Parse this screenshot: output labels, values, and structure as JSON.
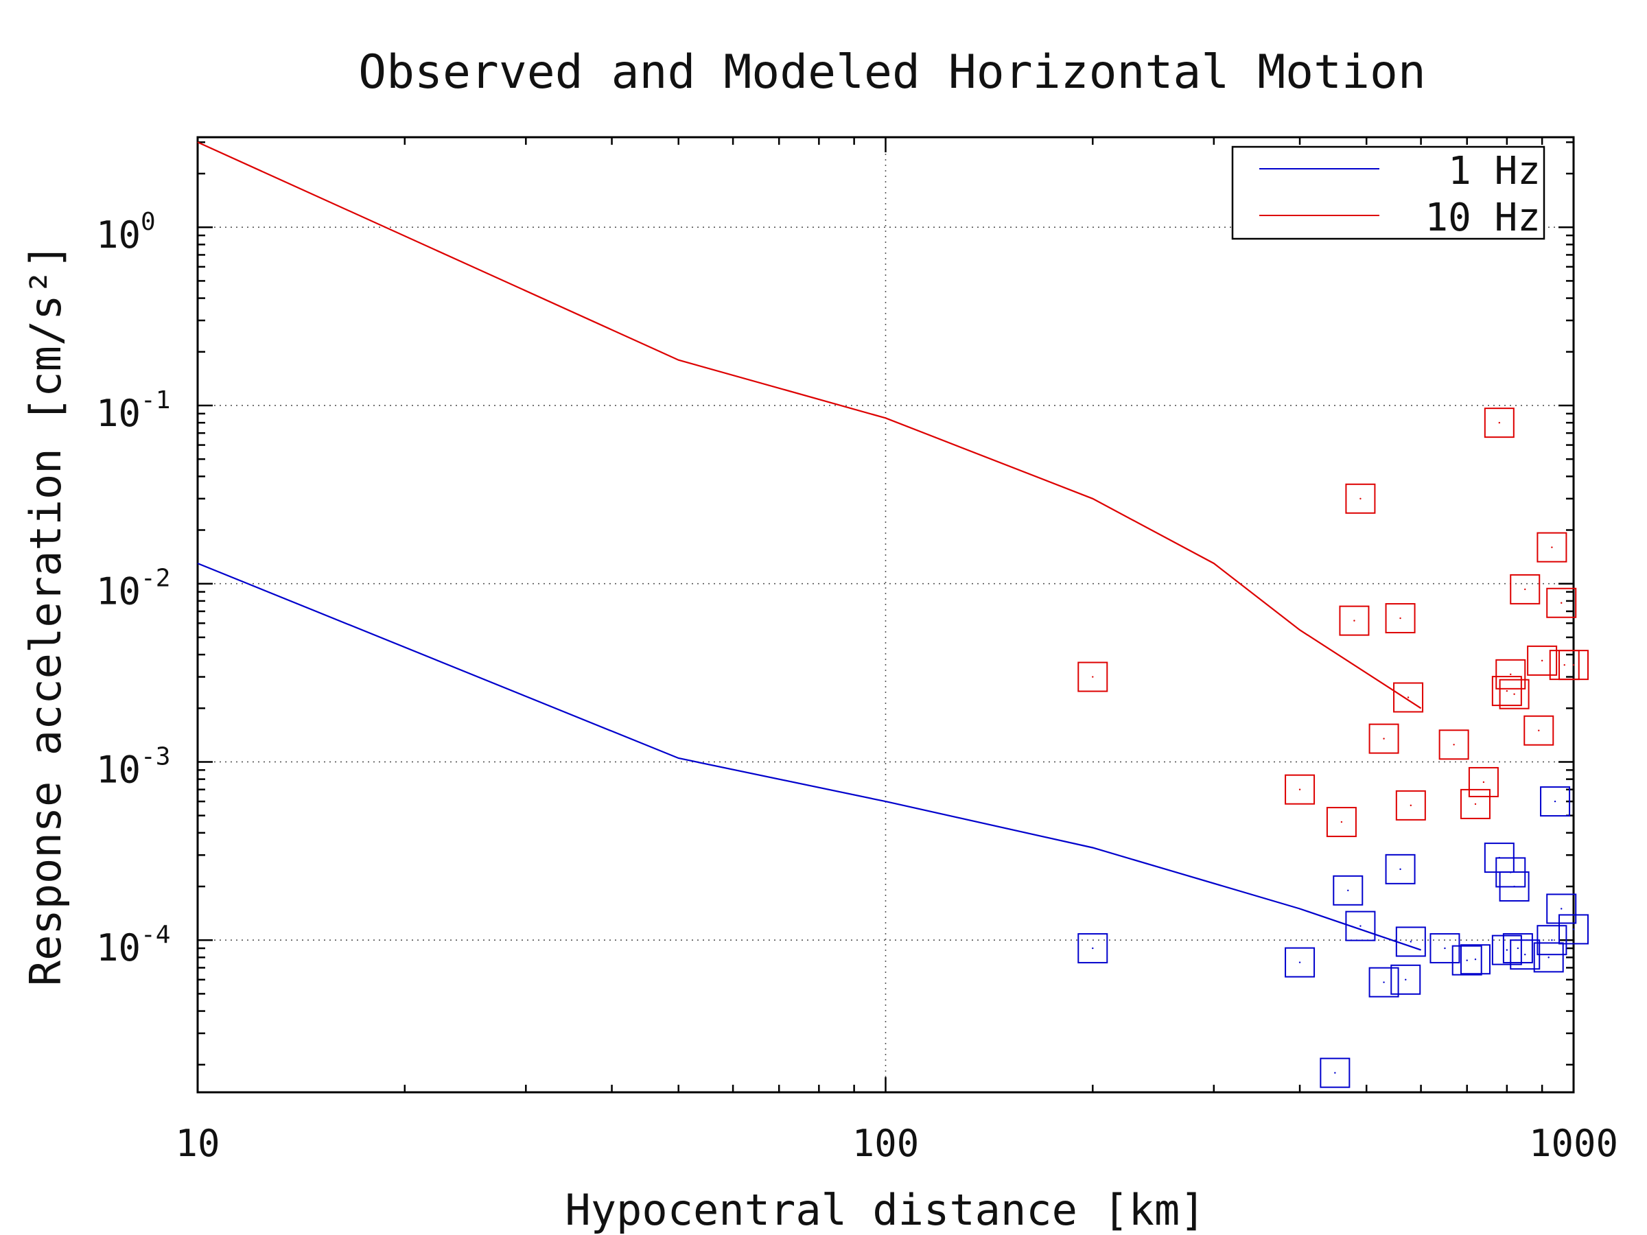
{
  "chart_data": {
    "type": "scatter",
    "title": "Observed and Modeled Horizontal Motion",
    "xlabel": "Hypocentral distance [km]",
    "ylabel": "Response acceleration [cm/s²]",
    "x_scale": "log",
    "y_scale": "log",
    "xlim": [
      10,
      1000
    ],
    "ylim": [
      1.4e-05,
      3.2
    ],
    "x_ticks": [
      {
        "value": 10,
        "label": "10"
      },
      {
        "value": 100,
        "label": "100"
      },
      {
        "value": 1000,
        "label": "1000"
      }
    ],
    "y_ticks": [
      {
        "value": 1,
        "base": "10",
        "exp": "0"
      },
      {
        "value": 0.1,
        "base": "10",
        "exp": "-1"
      },
      {
        "value": 0.01,
        "base": "10",
        "exp": "-2"
      },
      {
        "value": 0.001,
        "base": "10",
        "exp": "-3"
      },
      {
        "value": 0.0001,
        "base": "10",
        "exp": "-4"
      }
    ],
    "grid": true,
    "legend_position": "top-right",
    "series": [
      {
        "name": "1 Hz",
        "color": "#0000cc",
        "kind": "line",
        "x": [
          10,
          50,
          100,
          200,
          400,
          600
        ],
        "y": [
          0.013,
          0.00105,
          0.0006,
          0.00033,
          0.00015,
          8.8e-05
        ]
      },
      {
        "name": "10 Hz",
        "color": "#dd0000",
        "kind": "line",
        "x": [
          10,
          50,
          100,
          200,
          300,
          400,
          600
        ],
        "y": [
          3.0,
          0.18,
          0.085,
          0.03,
          0.013,
          0.0055,
          0.002
        ]
      },
      {
        "color": "#dd0000",
        "kind": "markers",
        "marker": "square",
        "x": [
          200,
          400,
          460,
          480,
          490,
          530,
          560,
          575,
          580,
          670,
          720,
          740,
          780,
          800,
          810,
          820,
          850,
          890,
          900,
          930,
          960,
          970,
          1000
        ],
        "y": [
          0.003,
          0.0007,
          0.00046,
          0.0062,
          0.03,
          0.00135,
          0.0064,
          0.0023,
          0.00057,
          0.00125,
          0.00058,
          0.00077,
          0.08,
          0.0025,
          0.0031,
          0.0024,
          0.0093,
          0.0015,
          0.0037,
          0.016,
          0.0078,
          0.0035,
          0.0035
        ]
      },
      {
        "color": "#0000cc",
        "kind": "markers",
        "marker": "square",
        "x": [
          200,
          400,
          450,
          470,
          490,
          530,
          560,
          570,
          580,
          650,
          700,
          720,
          780,
          800,
          810,
          820,
          830,
          850,
          920,
          930,
          940,
          960,
          1000
        ],
        "y": [
          9e-05,
          7.5e-05,
          1.8e-05,
          0.00019,
          0.00012,
          5.8e-05,
          0.00025,
          6e-05,
          9.8e-05,
          9e-05,
          7.7e-05,
          7.8e-05,
          0.00029,
          8.8e-05,
          0.00024,
          0.0002,
          9e-05,
          8.3e-05,
          8e-05,
          0.0001,
          0.0006,
          0.00015,
          0.000115
        ]
      }
    ]
  }
}
